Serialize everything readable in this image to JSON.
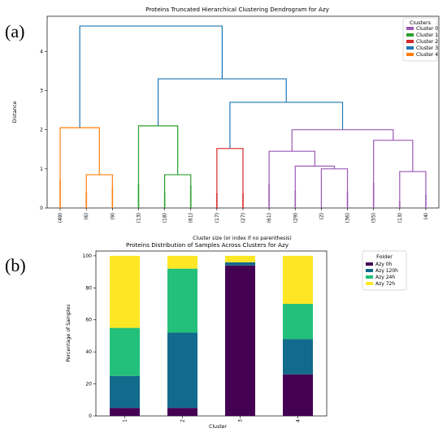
{
  "panel_labels": [
    "(a)",
    "(b)"
  ],
  "chart_data": [
    {
      "type": "dendrogram",
      "title": "Proteins Truncated Hierarchical Clustering Dendrogram for Azy",
      "xlabel": "Cluster size (or index if no parenthesis)",
      "ylabel": "Distance",
      "ylim": [
        0,
        4.9
      ],
      "yticks": [
        0,
        1,
        2,
        3,
        4
      ],
      "leaves": [
        "(49)",
        "(6)",
        "(9)",
        "(13)",
        "(18)",
        "(61)",
        "(17)",
        "(27)",
        "(61)",
        "(29)",
        "(2)",
        "(36)",
        "(55)",
        "(13)",
        "(4)"
      ],
      "legend_title": "Clusters",
      "legend": [
        {
          "name": "Cluster 0",
          "color": "#9b59b6"
        },
        {
          "name": "Cluster 1",
          "color": "#2ca02c"
        },
        {
          "name": "Cluster 2",
          "color": "#d62728"
        },
        {
          "name": "Cluster 3",
          "color": "#1f77b4"
        },
        {
          "name": "Cluster 4",
          "color": "#ff7f0e"
        }
      ],
      "links": [
        {
          "a": 1,
          "b": 2,
          "h": 0.85,
          "color": "#ff7f0e"
        },
        {
          "a": 0,
          "b": 1.5,
          "h": 2.05,
          "color": "#ff7f0e"
        },
        {
          "a": 4,
          "b": 5,
          "h": 0.85,
          "color": "#2ca02c"
        },
        {
          "a": 3,
          "b": 4.5,
          "h": 2.1,
          "color": "#2ca02c"
        },
        {
          "a": 6,
          "b": 7,
          "h": 1.52,
          "color": "#d62728"
        },
        {
          "a": 10,
          "b": 11,
          "h": 1.0,
          "color": "#9b59b6"
        },
        {
          "a": 9,
          "b": 10.5,
          "h": 1.07,
          "color": "#9b59b6"
        },
        {
          "a": 8,
          "b": 9.75,
          "h": 1.45,
          "color": "#9b59b6"
        },
        {
          "a": 13,
          "b": 14,
          "h": 0.93,
          "color": "#9b59b6"
        },
        {
          "a": 12,
          "b": 13.5,
          "h": 1.73,
          "color": "#9b59b6"
        },
        {
          "a": 8.875,
          "b": 12.75,
          "h": 2.0,
          "color": "#9b59b6"
        },
        {
          "a": 6.5,
          "b": 10.8125,
          "h": 2.7,
          "color": "#1f77b4"
        },
        {
          "a": 3.75,
          "b": 8.65625,
          "h": 3.3,
          "color": "#1f77b4"
        },
        {
          "a": 0.75,
          "b": 6.203125,
          "h": 4.65,
          "color": "#1f77b4"
        }
      ],
      "leaf_dots": [
        0.7,
        0.38,
        0.52,
        0.58,
        0.4,
        0.55,
        0.35,
        0.35,
        0.6,
        0.42,
        0.0,
        0.4,
        0.62,
        0.15,
        0.32
      ],
      "leaf_dot_colors": [
        "#ff7f0e",
        "#ff7f0e",
        "#ff7f0e",
        "#2ca02c",
        "#2ca02c",
        "#2ca02c",
        "#d62728",
        "#d62728",
        "#9b59b6",
        "#9b59b6",
        "#9b59b6",
        "#9b59b6",
        "#9b59b6",
        "#9b59b6",
        "#9b59b6"
      ]
    },
    {
      "type": "stacked-bar",
      "title": "Proteins Distribution of Samples Across Clusters for Azy",
      "xlabel": "Cluster",
      "ylabel": "Percentage of Samples",
      "ylim": [
        0,
        103
      ],
      "yticks": [
        0,
        20,
        40,
        60,
        80,
        100
      ],
      "categories": [
        "1",
        "2",
        "3",
        "4"
      ],
      "legend_title": "Folder",
      "series": [
        {
          "name": "Azy 0h",
          "color": "#440154",
          "values": [
            5,
            5,
            94,
            26
          ]
        },
        {
          "name": "Azy 120h",
          "color": "#126a8c",
          "values": [
            20,
            47,
            2,
            22
          ]
        },
        {
          "name": "Azy 24h",
          "color": "#22c07a",
          "values": [
            30,
            40,
            0,
            22
          ]
        },
        {
          "name": "Azy 72h",
          "color": "#fde725",
          "values": [
            45,
            8,
            4,
            30
          ]
        }
      ]
    }
  ]
}
